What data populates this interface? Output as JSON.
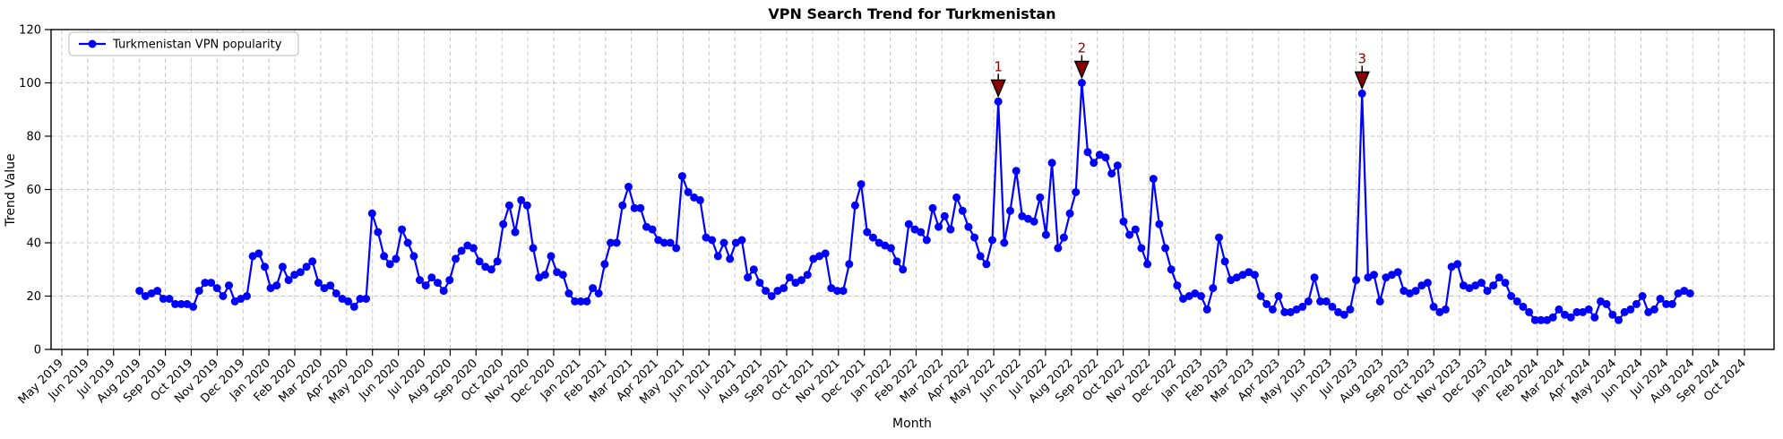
{
  "figure": {
    "title": "VPN Search Trend for Turkmenistan",
    "xlabel": "Month",
    "ylabel": "Trend Value",
    "legend_label": "Turkmenistan VPN popularity",
    "colors": {
      "line": "#0000FF",
      "marker": "#0000FF",
      "annotation": "#8B0000",
      "annotation_edge": "#000000",
      "grid": "#C9C9C9",
      "spine": "#000000",
      "legend_border": "#B8B8B8",
      "background": "#FFFFFF"
    }
  },
  "chart_data": {
    "type": "line",
    "title": "VPN Search Trend for Turkmenistan",
    "xlabel": "Month",
    "ylabel": "Trend Value",
    "legend": [
      "Turkmenistan VPN popularity"
    ],
    "legend_position": "upper left",
    "grid": true,
    "ylim": [
      0,
      120
    ],
    "yticks": [
      0,
      20,
      40,
      60,
      80,
      100,
      120
    ],
    "x_tick_labels": [
      "May 2019",
      "Jun 2019",
      "Jul 2019",
      "Aug 2019",
      "Sep 2019",
      "Oct 2019",
      "Nov 2019",
      "Dec 2019",
      "Jan 2020",
      "Feb 2020",
      "Mar 2020",
      "Apr 2020",
      "May 2020",
      "Jun 2020",
      "Jul 2020",
      "Aug 2020",
      "Sep 2020",
      "Oct 2020",
      "Nov 2020",
      "Dec 2020",
      "Jan 2021",
      "Feb 2021",
      "Mar 2021",
      "Apr 2021",
      "May 2021",
      "Jun 2021",
      "Jul 2021",
      "Aug 2021",
      "Sep 2021",
      "Oct 2021",
      "Nov 2021",
      "Dec 2021",
      "Jan 2022",
      "Feb 2022",
      "Mar 2022",
      "Apr 2022",
      "May 2022",
      "Jun 2022",
      "Jul 2022",
      "Aug 2022",
      "Sep 2022",
      "Oct 2022",
      "Nov 2022",
      "Dec 2022",
      "Jan 2023",
      "Feb 2023",
      "Mar 2023",
      "Apr 2023",
      "May 2023",
      "Jun 2023",
      "Jul 2023",
      "Aug 2023",
      "Sep 2023",
      "Oct 2023",
      "Nov 2023",
      "Dec 2023",
      "Jan 2024",
      "Feb 2024",
      "Mar 2024",
      "Apr 2024",
      "May 2024",
      "Jun 2024",
      "Jul 2024",
      "Aug 2024",
      "Sep 2024",
      "Oct 2024"
    ],
    "x_start_month_offset": 3,
    "x_span_months": 59.9,
    "values": [
      22,
      20,
      21,
      22,
      19,
      19,
      17,
      17,
      17,
      16,
      22,
      25,
      25,
      23,
      20,
      24,
      18,
      19,
      20,
      35,
      36,
      31,
      23,
      24,
      31,
      26,
      28,
      29,
      31,
      33,
      25,
      23,
      24,
      21,
      19,
      18,
      16,
      19,
      19,
      51,
      44,
      35,
      32,
      34,
      45,
      40,
      35,
      26,
      24,
      27,
      25,
      22,
      26,
      34,
      37,
      39,
      38,
      33,
      31,
      30,
      33,
      47,
      54,
      44,
      56,
      54,
      38,
      27,
      28,
      35,
      29,
      28,
      21,
      18,
      18,
      18,
      23,
      21,
      32,
      40,
      40,
      54,
      61,
      53,
      53,
      46,
      45,
      41,
      40,
      40,
      38,
      65,
      59,
      57,
      56,
      42,
      41,
      35,
      40,
      34,
      40,
      41,
      27,
      30,
      25,
      22,
      20,
      22,
      23,
      27,
      25,
      26,
      28,
      34,
      35,
      36,
      23,
      22,
      22,
      32,
      54,
      62,
      44,
      42,
      40,
      39,
      38,
      33,
      30,
      47,
      45,
      44,
      41,
      53,
      46,
      50,
      45,
      57,
      52,
      46,
      42,
      35,
      32,
      41,
      93,
      40,
      52,
      67,
      50,
      49,
      48,
      57,
      43,
      70,
      38,
      42,
      51,
      59,
      100,
      74,
      70,
      73,
      72,
      66,
      69,
      48,
      43,
      45,
      38,
      32,
      64,
      47,
      38,
      30,
      24,
      19,
      20,
      21,
      20,
      15,
      23,
      42,
      33,
      26,
      27,
      28,
      29,
      28,
      20,
      17,
      15,
      20,
      14,
      14,
      15,
      16,
      18,
      27,
      18,
      18,
      16,
      14,
      13,
      15,
      26,
      96,
      27,
      28,
      18,
      27,
      28,
      29,
      22,
      21,
      22,
      24,
      25,
      16,
      14,
      15,
      31,
      32,
      24,
      23,
      24,
      25,
      22,
      24,
      27,
      25,
      20,
      18,
      16,
      14,
      11,
      11,
      11,
      12,
      15,
      13,
      12,
      14,
      14,
      15,
      12,
      18,
      17,
      13,
      11,
      14,
      15,
      17,
      20,
      14,
      15,
      19,
      17,
      17,
      21,
      22,
      21
    ],
    "annotations": [
      {
        "label": "1",
        "index": 144,
        "value": 93
      },
      {
        "label": "2",
        "index": 158,
        "value": 100
      },
      {
        "label": "3",
        "index": 205,
        "value": 96
      }
    ]
  }
}
